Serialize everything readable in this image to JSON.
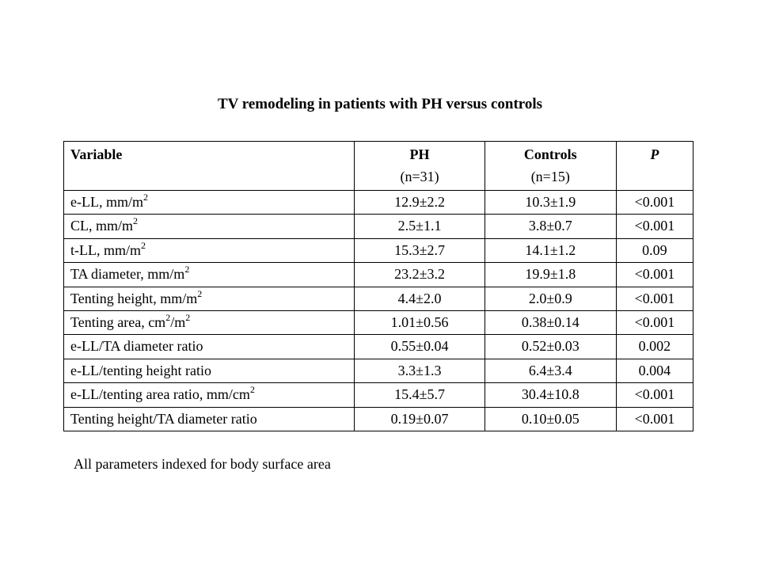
{
  "title": "TV remodeling in patients with PH versus controls",
  "table": {
    "headers": [
      {
        "main": "Variable",
        "sub": ""
      },
      {
        "main": "PH",
        "sub": "(n=31)"
      },
      {
        "main": "Controls",
        "sub": "(n=15)"
      },
      {
        "main": "P",
        "sub": ""
      }
    ],
    "rows": [
      {
        "label": "e-LL, mm/m",
        "sup1": "2",
        "mid": "",
        "sup2": "",
        "ph": "12.9±2.2",
        "controls": "10.3±1.9",
        "p": "<0.001"
      },
      {
        "label": "CL, mm/m",
        "sup1": "2",
        "mid": "",
        "sup2": "",
        "ph": "2.5±1.1",
        "controls": "3.8±0.7",
        "p": "<0.001"
      },
      {
        "label": "t-LL, mm/m",
        "sup1": "2",
        "mid": "",
        "sup2": "",
        "ph": "15.3±2.7",
        "controls": "14.1±1.2",
        "p": "0.09"
      },
      {
        "label": "TA diameter, mm/m",
        "sup1": "2",
        "mid": "",
        "sup2": "",
        "ph": "23.2±3.2",
        "controls": "19.9±1.8",
        "p": "<0.001"
      },
      {
        "label": "Tenting height, mm/m",
        "sup1": "2",
        "mid": "",
        "sup2": "",
        "ph": "4.4±2.0",
        "controls": "2.0±0.9",
        "p": "<0.001"
      },
      {
        "label": "Tenting area, cm",
        "sup1": "2",
        "mid": "/m",
        "sup2": "2",
        "ph": "1.01±0.56",
        "controls": "0.38±0.14",
        "p": "<0.001"
      },
      {
        "label": "e-LL/TA diameter ratio",
        "sup1": "",
        "mid": "",
        "sup2": "",
        "ph": "0.55±0.04",
        "controls": "0.52±0.03",
        "p": "0.002"
      },
      {
        "label": "e-LL/tenting height ratio",
        "sup1": "",
        "mid": "",
        "sup2": "",
        "ph": "3.3±1.3",
        "controls": "6.4±3.4",
        "p": "0.004"
      },
      {
        "label": "e-LL/tenting area ratio, mm/cm",
        "sup1": "2",
        "mid": "",
        "sup2": "",
        "ph": "15.4±5.7",
        "controls": "30.4±10.8",
        "p": "<0.001"
      },
      {
        "label": "Tenting height/TA diameter ratio",
        "sup1": "",
        "mid": "",
        "sup2": "",
        "ph": "0.19±0.07",
        "controls": "0.10±0.05",
        "p": "<0.001"
      }
    ]
  },
  "footnote": "All parameters indexed for body surface area"
}
